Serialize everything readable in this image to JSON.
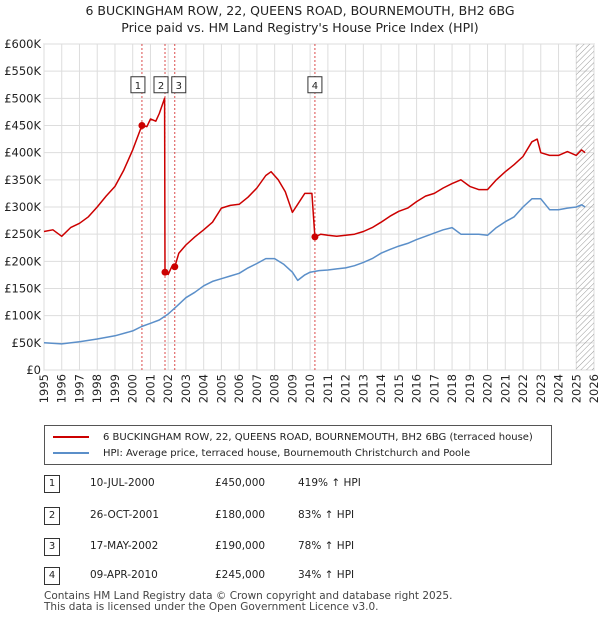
{
  "title_line1": "6 BUCKINGHAM ROW, 22, QUEENS ROAD, BOURNEMOUTH, BH2 6BG",
  "title_line2": "Price paid vs. HM Land Registry's House Price Index (HPI)",
  "legend": {
    "property": "6 BUCKINGHAM ROW, 22, QUEENS ROAD, BOURNEMOUTH, BH2 6BG (terraced house)",
    "hpi": "HPI: Average price, terraced house, Bournemouth Christchurch and Poole"
  },
  "transactions": [
    {
      "num": "1",
      "date": "10-JUL-2000",
      "price": "£450,000",
      "hpi_change": "419% ↑ HPI"
    },
    {
      "num": "2",
      "date": "26-OCT-2001",
      "price": "£180,000",
      "hpi_change": "83% ↑ HPI"
    },
    {
      "num": "3",
      "date": "17-MAY-2002",
      "price": "£190,000",
      "hpi_change": "78% ↑ HPI"
    },
    {
      "num": "4",
      "date": "09-APR-2010",
      "price": "£245,000",
      "hpi_change": "34% ↑ HPI"
    }
  ],
  "footer_line1": "Contains HM Land Registry data © Crown copyright and database right 2025.",
  "footer_line2": "This data is licensed under the Open Government Licence v3.0.",
  "colors": {
    "property": "#cc0000",
    "hpi": "#5b8fc9",
    "grid": "#dddddd",
    "plot_bg": "#ffffff"
  },
  "chart_data": {
    "type": "line",
    "title": "6 BUCKINGHAM ROW, 22, QUEENS ROAD, BOURNEMOUTH, BH2 6BG",
    "subtitle": "Price paid vs. HM Land Registry's House Price Index (HPI)",
    "xlim": [
      1995,
      2026
    ],
    "ylim": [
      0,
      600000
    ],
    "x_ticks": [
      "1995",
      "1996",
      "1997",
      "1998",
      "1999",
      "2000",
      "2001",
      "2002",
      "2003",
      "2004",
      "2005",
      "2006",
      "2007",
      "2008",
      "2009",
      "2010",
      "2011",
      "2012",
      "2013",
      "2014",
      "2015",
      "2016",
      "2017",
      "2018",
      "2019",
      "2020",
      "2021",
      "2022",
      "2023",
      "2024",
      "2025",
      "2026"
    ],
    "y_ticks": [
      {
        "value": 0,
        "label": "£0"
      },
      {
        "value": 50000,
        "label": "£50K"
      },
      {
        "value": 100000,
        "label": "£100K"
      },
      {
        "value": 150000,
        "label": "£150K"
      },
      {
        "value": 200000,
        "label": "£200K"
      },
      {
        "value": 250000,
        "label": "£250K"
      },
      {
        "value": 300000,
        "label": "£300K"
      },
      {
        "value": 350000,
        "label": "£350K"
      },
      {
        "value": 400000,
        "label": "£400K"
      },
      {
        "value": 450000,
        "label": "£450K"
      },
      {
        "value": 500000,
        "label": "£500K"
      },
      {
        "value": 550000,
        "label": "£550K"
      },
      {
        "value": 600000,
        "label": "£600K"
      }
    ],
    "grid": true,
    "series": [
      {
        "name": "property",
        "x": [
          1995,
          1995.5,
          1996,
          1996.5,
          1997,
          1997.5,
          1998,
          1998.5,
          1999,
          1999.5,
          2000,
          2000.52,
          2000.8,
          2001,
          2001.3,
          2001.5,
          2001.8,
          2001.82,
          2002.0,
          2002.2,
          2002.37,
          2002.6,
          2003,
          2003.5,
          2004,
          2004.5,
          2005,
          2005.5,
          2006,
          2006.5,
          2007,
          2007.5,
          2007.8,
          2008.2,
          2008.6,
          2009,
          2009.3,
          2009.7,
          2010.1,
          2010.27,
          2010.6,
          2011,
          2011.5,
          2012,
          2012.5,
          2013,
          2013.5,
          2014,
          2014.5,
          2015,
          2015.5,
          2016,
          2016.5,
          2017,
          2017.5,
          2018,
          2018.5,
          2019,
          2019.5,
          2020,
          2020.5,
          2021,
          2021.5,
          2022,
          2022.5,
          2022.8,
          2023,
          2023.5,
          2024,
          2024.5,
          2025,
          2025.3,
          2025.5
        ],
        "y": [
          255000,
          258000,
          246000,
          262000,
          270000,
          282000,
          300000,
          320000,
          338000,
          368000,
          405000,
          450000,
          448000,
          462000,
          458000,
          472000,
          500000,
          180000,
          176000,
          190000,
          190000,
          215000,
          230000,
          245000,
          258000,
          272000,
          298000,
          303000,
          305000,
          318000,
          335000,
          358000,
          365000,
          350000,
          328000,
          290000,
          305000,
          325000,
          325000,
          245000,
          250000,
          248000,
          246000,
          248000,
          250000,
          255000,
          262000,
          272000,
          283000,
          292000,
          298000,
          310000,
          320000,
          325000,
          335000,
          343000,
          350000,
          338000,
          332000,
          332000,
          350000,
          365000,
          378000,
          393000,
          420000,
          425000,
          400000,
          395000,
          395000,
          402000,
          395000,
          405000,
          400000
        ]
      },
      {
        "name": "hpi",
        "x": [
          1995,
          1996,
          1997,
          1998,
          1999,
          2000,
          2000.5,
          2001,
          2001.5,
          2002,
          2002.5,
          2003,
          2003.5,
          2004,
          2004.5,
          2005,
          2005.5,
          2006,
          2006.5,
          2007,
          2007.5,
          2008,
          2008.5,
          2009,
          2009.3,
          2009.7,
          2010,
          2010.5,
          2011,
          2011.5,
          2012,
          2012.5,
          2013,
          2013.5,
          2014,
          2014.5,
          2015,
          2015.5,
          2016,
          2016.5,
          2017,
          2017.5,
          2018,
          2018.5,
          2019,
          2019.5,
          2020,
          2020.5,
          2021,
          2021.5,
          2022,
          2022.5,
          2023,
          2023.5,
          2024,
          2024.5,
          2025,
          2025.3,
          2025.5
        ],
        "y": [
          50000,
          48000,
          52000,
          57000,
          63000,
          72000,
          80000,
          86000,
          92000,
          103000,
          118000,
          133000,
          143000,
          155000,
          163000,
          168000,
          173000,
          178000,
          188000,
          196000,
          205000,
          205000,
          195000,
          180000,
          165000,
          175000,
          180000,
          183000,
          184000,
          186000,
          188000,
          192000,
          198000,
          205000,
          215000,
          222000,
          228000,
          233000,
          240000,
          246000,
          252000,
          258000,
          262000,
          250000,
          250000,
          250000,
          248000,
          262000,
          273000,
          282000,
          300000,
          315000,
          315000,
          295000,
          295000,
          298000,
          300000,
          304000,
          300000
        ]
      }
    ],
    "markers": [
      {
        "label": "1",
        "x": 2000.52,
        "y": 450000
      },
      {
        "label": "2",
        "x": 2001.82,
        "y": 180000
      },
      {
        "label": "3",
        "x": 2002.37,
        "y": 190000
      },
      {
        "label": "4",
        "x": 2010.27,
        "y": 245000
      }
    ],
    "hatched_from_x": 2025.0
  }
}
